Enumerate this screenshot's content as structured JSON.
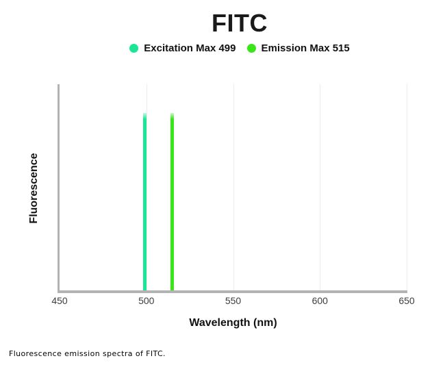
{
  "title": "FITC",
  "legend": [
    {
      "label": "Excitation Max 499",
      "color": "#1AE695"
    },
    {
      "label": "Emission Max 515",
      "color": "#3AE51A"
    }
  ],
  "axes": {
    "x_label": "Wavelength (nm)",
    "y_label": "Fluorescence"
  },
  "caption": "Fluorescence emission spectra of FITC.",
  "colors": {
    "excitation": "#1AE695",
    "emission": "#3AE51A",
    "axis": "#b3b3b3",
    "gridline": "#ececec"
  },
  "chart_data": {
    "type": "line",
    "subtype": "spectra-peak-lines",
    "title": "FITC",
    "xlabel": "Wavelength (nm)",
    "ylabel": "Fluorescence",
    "xlim": [
      450,
      650
    ],
    "x_ticks": [
      450,
      500,
      550,
      600,
      650
    ],
    "grid": "vertical-only",
    "legend_position": "top-center",
    "series": [
      {
        "name": "Excitation Max 499",
        "peak_wavelength": 499,
        "color": "#1AE695"
      },
      {
        "name": "Emission Max 515",
        "peak_wavelength": 515,
        "color": "#3AE51A"
      }
    ]
  }
}
